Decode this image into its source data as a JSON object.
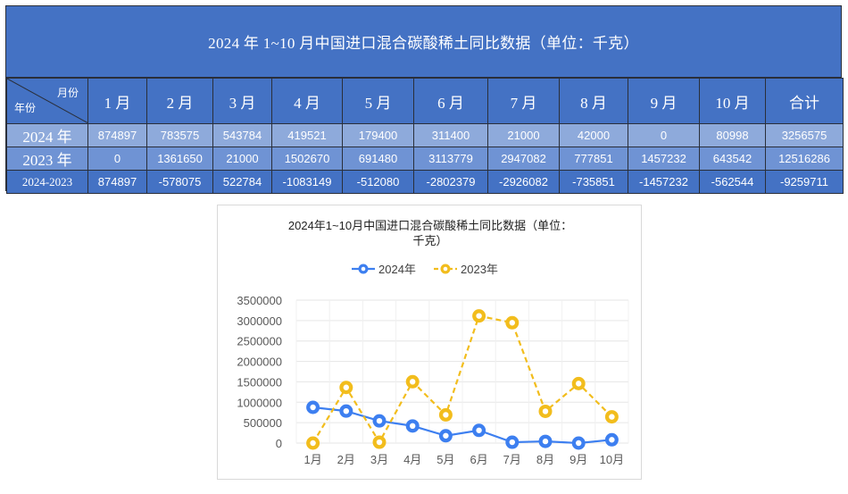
{
  "table": {
    "title": "2024 年 1~10 月中国进口混合碳酸稀土同比数据（单位：千克）",
    "corner_top": "月份",
    "corner_bottom": "年份",
    "months": [
      "1 月",
      "2 月",
      "3 月",
      "4 月",
      "5 月",
      "6 月",
      "7 月",
      "8 月",
      "9 月",
      "10 月"
    ],
    "total_label": "合计",
    "rows": [
      {
        "label": "2024 年",
        "values": [
          "874897",
          "783575",
          "543784",
          "419521",
          "179400",
          "311400",
          "21000",
          "42000",
          "0",
          "80998"
        ],
        "total": "3256575"
      },
      {
        "label": "2023 年",
        "values": [
          "0",
          "1361650",
          "21000",
          "1502670",
          "691480",
          "3113779",
          "2947082",
          "777851",
          "1457232",
          "643542"
        ],
        "total": "12516286"
      },
      {
        "label": "2024-2023",
        "values": [
          "874897",
          "-578075",
          "522784",
          "-1083149",
          "-512080",
          "-2802379",
          "-2926082",
          "-735851",
          "-1457232",
          "-562544"
        ],
        "total": "-9259711"
      }
    ]
  },
  "chart_data": {
    "type": "line",
    "title_line1": "2024年1~10月中国进口混合碳酸稀土同比数据（单位：",
    "title_line2": "千克）",
    "categories": [
      "1月",
      "2月",
      "3月",
      "4月",
      "5月",
      "6月",
      "7月",
      "8月",
      "9月",
      "10月"
    ],
    "series": [
      {
        "name": "2024年",
        "color": "#3d7ff0",
        "dash": "solid",
        "values": [
          874897,
          783575,
          543784,
          419521,
          179400,
          311400,
          21000,
          42000,
          0,
          80998
        ]
      },
      {
        "name": "2023年",
        "color": "#f2bd1d",
        "dash": "dashed",
        "values": [
          0,
          1361650,
          21000,
          1502670,
          691480,
          3113779,
          2947082,
          777851,
          1457232,
          643542
        ]
      }
    ],
    "ylim": [
      0,
      3500000
    ],
    "yticks": [
      "3500000",
      "3000000",
      "2500000",
      "2000000",
      "1500000",
      "1000000",
      "500000",
      "0"
    ],
    "legend_position": "top",
    "grid": true
  }
}
